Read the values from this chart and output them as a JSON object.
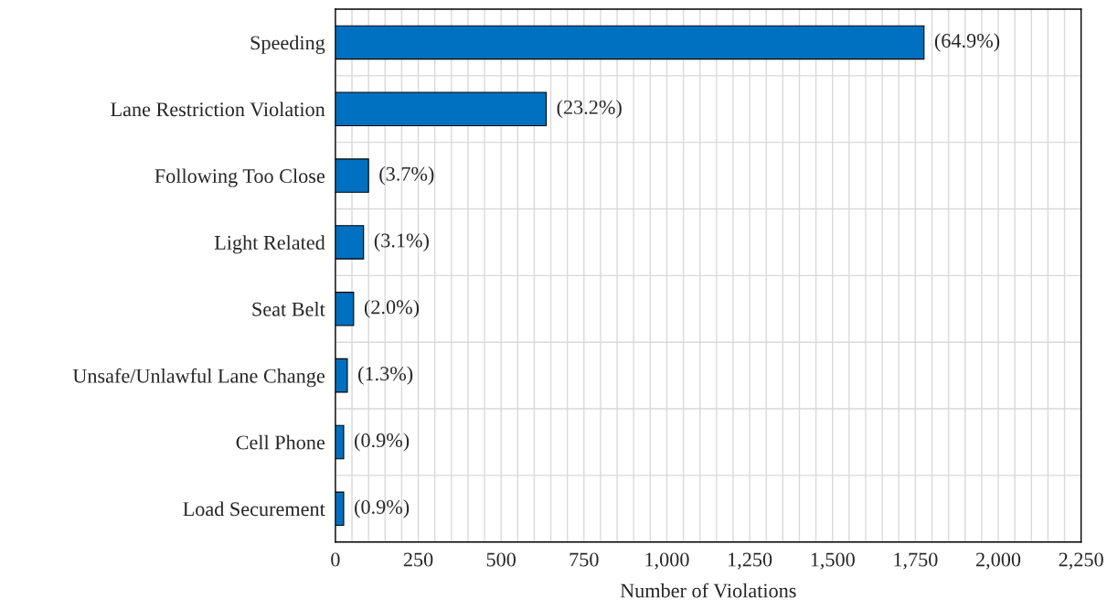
{
  "chart_data": {
    "type": "bar",
    "orientation": "horizontal",
    "xlabel": "Number of Violations",
    "categories": [
      "Speeding",
      "Lane Restriction Violation",
      "Following Too Close",
      "Light Related",
      "Seat Belt",
      "Unsafe/Unlawful Lane Change",
      "Cell Phone",
      "Load Securement"
    ],
    "values": [
      1776,
      636,
      100,
      85,
      55,
      36,
      25,
      25
    ],
    "annotations": [
      {
        "text": "(64.9%)",
        "x": 1776,
        "y": "Speeding"
      },
      {
        "text": "(23.2%)",
        "x": 636,
        "y": "Lane Restriction Violation"
      },
      {
        "text": "(3.7%)",
        "x": 100,
        "y": "Following Too Close"
      },
      {
        "text": "(3.1%)",
        "x": 85,
        "y": "Light Related"
      },
      {
        "text": "(2.0%)",
        "x": 55,
        "y": "Seat Belt"
      },
      {
        "text": "(1.3%)",
        "x": 36,
        "y": "Unsafe/Unlawful Lane Change"
      },
      {
        "text": "(0.9%)",
        "x": 25,
        "y": "Cell Phone"
      },
      {
        "text": "(0.9%)",
        "x": 25,
        "y": "Load Securement"
      }
    ],
    "color": "#0070c0",
    "xlim": [
      0,
      2250
    ],
    "xticks": [
      0,
      250,
      500,
      750,
      {
        "value": 1000,
        "label": "1,000"
      },
      {
        "value": 1250,
        "label": "1,250"
      },
      {
        "value": 1500,
        "label": "1,500"
      },
      {
        "value": 1750,
        "label": "1,750"
      },
      {
        "value": 2000,
        "label": "2,000"
      },
      {
        "value": 2250,
        "label": "2,250"
      }
    ],
    "grid": true,
    "legend": false
  }
}
